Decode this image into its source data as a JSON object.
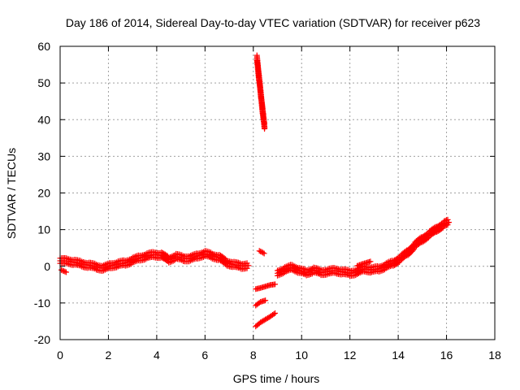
{
  "chart_data": {
    "type": "scatter",
    "title": "Day 186 of 2014, Sidereal Day-to-day VTEC variation (SDTVAR) for receiver p623",
    "xlabel": "GPS time / hours",
    "ylabel": "SDTVAR / TECUs",
    "xlim": [
      0,
      18
    ],
    "ylim": [
      -20,
      60
    ],
    "xticks": [
      0,
      2,
      4,
      6,
      8,
      10,
      12,
      14,
      16,
      18
    ],
    "yticks": [
      -20,
      -10,
      0,
      10,
      20,
      30,
      40,
      50,
      60
    ],
    "grid": true,
    "legend": "none",
    "marker": "+",
    "series": [
      {
        "name": "main trace",
        "color": "#ff0000",
        "points": [
          [
            0.0,
            1.5
          ],
          [
            0.3,
            1.4
          ],
          [
            0.6,
            1.1
          ],
          [
            0.9,
            0.6
          ],
          [
            1.2,
            0.3
          ],
          [
            1.5,
            -0.2
          ],
          [
            1.8,
            -0.5
          ],
          [
            2.1,
            0.2
          ],
          [
            2.4,
            0.6
          ],
          [
            2.7,
            0.9
          ],
          [
            3.0,
            1.6
          ],
          [
            3.3,
            2.3
          ],
          [
            3.6,
            2.8
          ],
          [
            3.9,
            3.2
          ],
          [
            4.2,
            3.0
          ],
          [
            4.5,
            1.8
          ],
          [
            4.8,
            2.6
          ],
          [
            5.1,
            2.2
          ],
          [
            5.4,
            2.1
          ],
          [
            5.7,
            2.9
          ],
          [
            6.0,
            3.4
          ],
          [
            6.3,
            2.9
          ],
          [
            6.6,
            2.3
          ],
          [
            6.9,
            1.0
          ],
          [
            7.2,
            0.4
          ],
          [
            7.5,
            0.1
          ],
          [
            7.8,
            0.2
          ]
        ]
      },
      {
        "name": "early dip",
        "color": "#ff0000",
        "points": [
          [
            0.05,
            -1.0
          ],
          [
            0.15,
            -1.3
          ],
          [
            0.25,
            -1.6
          ]
        ]
      },
      {
        "name": "steep segment",
        "color": "#ff0000",
        "points": [
          [
            8.15,
            56.8
          ],
          [
            8.18,
            55.0
          ],
          [
            8.21,
            53.0
          ],
          [
            8.24,
            51.2
          ],
          [
            8.27,
            49.5
          ],
          [
            8.3,
            47.5
          ],
          [
            8.33,
            45.7
          ],
          [
            8.36,
            44.0
          ],
          [
            8.39,
            42.2
          ],
          [
            8.42,
            40.5
          ],
          [
            8.45,
            38.8
          ],
          [
            8.47,
            37.8
          ]
        ]
      },
      {
        "name": "short segment near 4",
        "color": "#ff0000",
        "points": [
          [
            8.25,
            4.2
          ],
          [
            8.35,
            3.9
          ],
          [
            8.45,
            3.5
          ]
        ]
      },
      {
        "name": "negative segment 1",
        "color": "#ff0000",
        "points": [
          [
            8.1,
            -6.2
          ],
          [
            8.3,
            -5.9
          ],
          [
            8.5,
            -5.5
          ],
          [
            8.7,
            -5.1
          ],
          [
            8.9,
            -4.9
          ]
        ]
      },
      {
        "name": "negative segment 2",
        "color": "#ff0000",
        "points": [
          [
            8.1,
            -10.7
          ],
          [
            8.2,
            -10.2
          ],
          [
            8.3,
            -9.7
          ],
          [
            8.4,
            -9.5
          ],
          [
            8.5,
            -9.3
          ]
        ]
      },
      {
        "name": "negative segment 3",
        "color": "#ff0000",
        "points": [
          [
            8.1,
            -16.4
          ],
          [
            8.3,
            -15.3
          ],
          [
            8.5,
            -14.5
          ],
          [
            8.7,
            -13.7
          ],
          [
            8.9,
            -12.8
          ]
        ]
      },
      {
        "name": "late trace",
        "color": "#ff0000",
        "points": [
          [
            9.0,
            -1.9
          ],
          [
            9.3,
            -0.9
          ],
          [
            9.6,
            -0.3
          ],
          [
            9.9,
            -1.1
          ],
          [
            10.2,
            -1.8
          ],
          [
            10.5,
            -1.0
          ],
          [
            10.8,
            -1.7
          ],
          [
            11.1,
            -1.4
          ],
          [
            11.4,
            -1.2
          ],
          [
            11.7,
            -1.5
          ],
          [
            12.0,
            -1.9
          ],
          [
            12.3,
            -1.5
          ],
          [
            12.6,
            -0.7
          ],
          [
            12.9,
            -1.0
          ],
          [
            13.2,
            -0.7
          ],
          [
            13.5,
            0.1
          ],
          [
            13.8,
            0.9
          ],
          [
            14.1,
            2.2
          ],
          [
            14.4,
            3.8
          ],
          [
            14.7,
            5.8
          ],
          [
            15.0,
            7.4
          ],
          [
            15.3,
            8.8
          ],
          [
            15.6,
            10.2
          ],
          [
            15.9,
            11.5
          ],
          [
            16.1,
            12.0
          ]
        ]
      },
      {
        "name": "late small segment",
        "color": "#ff0000",
        "points": [
          [
            12.3,
            0.1
          ],
          [
            12.5,
            0.6
          ],
          [
            12.7,
            1.0
          ],
          [
            12.85,
            1.3
          ]
        ]
      }
    ]
  }
}
